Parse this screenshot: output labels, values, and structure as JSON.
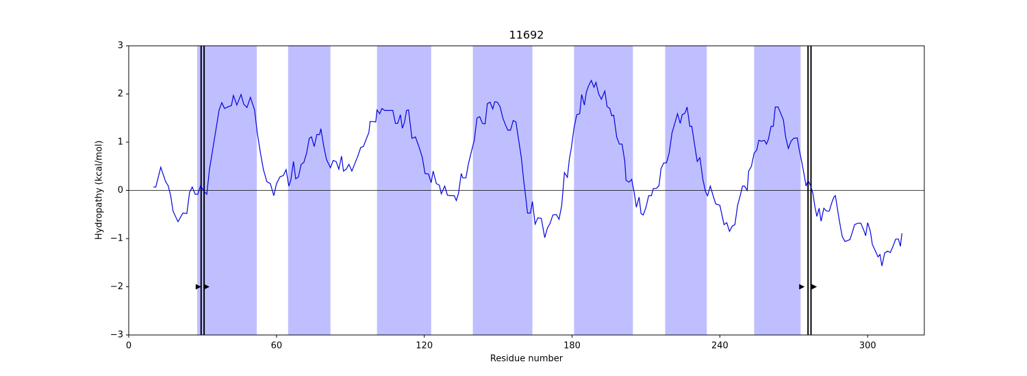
{
  "chart_data": {
    "type": "line",
    "title": "11692",
    "xlabel": "Residue number",
    "ylabel": "Hydropathy (kcal/mol)",
    "xlim": [
      0,
      323
    ],
    "ylim": [
      -3,
      3
    ],
    "xticks": [
      0,
      60,
      120,
      180,
      240,
      300
    ],
    "yticks": [
      {
        "value": -3,
        "label": "−3"
      },
      {
        "value": -2,
        "label": "−2"
      },
      {
        "value": -1,
        "label": "−1"
      },
      0,
      1,
      2,
      3
    ],
    "hline": 0,
    "spans": [
      [
        27.8,
        52
      ],
      [
        64.7,
        81.9
      ],
      [
        100.8,
        122.8
      ],
      [
        139.7,
        163.9
      ],
      [
        180.8,
        204.7
      ],
      [
        217.8,
        234.7
      ],
      [
        253.9,
        272.8
      ]
    ],
    "span_color": "#bfbfff",
    "vlines": [
      29.4,
      30.6,
      275.8,
      277
    ],
    "arrows": {
      "x": [
        28.3,
        31.7,
        273.3,
        278.3
      ],
      "y": [
        -2,
        -2,
        -2,
        -2
      ]
    },
    "color": "#0000dd",
    "x": [
      10,
      11,
      13,
      15,
      16,
      17,
      18,
      20,
      22,
      23.6,
      24.7,
      25.8,
      27,
      28,
      29.2,
      30.3,
      31.7,
      32.8,
      34.2,
      35.6,
      36.7,
      37.8,
      38.9,
      40.6,
      41.7,
      42.5,
      43.9,
      45.6,
      46.7,
      48,
      49.4,
      51.1,
      52.2,
      53.6,
      54.7,
      56.1,
      57.5,
      58.9,
      60,
      61.4,
      62.8,
      63.9,
      65,
      65.8,
      66.9,
      67.8,
      68.9,
      70,
      71.1,
      72.2,
      73.3,
      74.2,
      75.3,
      76.4,
      77.5,
      78,
      79.2,
      80.3,
      81.9,
      83,
      84.2,
      85.3,
      86.4,
      87.2,
      88.3,
      89.4,
      90.6,
      91.9,
      93,
      94.2,
      95.3,
      96.4,
      97.5,
      98,
      99.2,
      100.3,
      100.8,
      101.9,
      102.8,
      103.9,
      105,
      106.1,
      107.2,
      108.3,
      109.2,
      110.3,
      111.1,
      112,
      112.8,
      113.6,
      115,
      116.4,
      118,
      119.2,
      120.3,
      121.7,
      122.8,
      123.6,
      124.9,
      126.1,
      126.9,
      128.3,
      129.4,
      130.8,
      132.2,
      133,
      133.9,
      135,
      135.6,
      136.9,
      138,
      139.2,
      140.3,
      141.4,
      142.5,
      143.6,
      144.7,
      145.6,
      146.7,
      147.8,
      148.6,
      149.7,
      150.8,
      151.9,
      152.8,
      153.9,
      155,
      156.1,
      157.2,
      158.3,
      159.4,
      160.3,
      161.1,
      161.9,
      163.1,
      163.9,
      165,
      166.1,
      167.5,
      168.9,
      170,
      171.1,
      172.2,
      173.6,
      174.7,
      175.8,
      176.9,
      178.1,
      178.9,
      179.7,
      180.8,
      181.9,
      183.1,
      183.9,
      185,
      185.8,
      186.7,
      187.8,
      188.9,
      189.7,
      190.8,
      191.9,
      193.3,
      194.2,
      195.3,
      196.1,
      196.9,
      198.1,
      199.2,
      200.3,
      201.4,
      201.9,
      203.1,
      204.2,
      205.3,
      206.1,
      207.2,
      208,
      208.9,
      210,
      211.1,
      212.2,
      213,
      214.2,
      215.3,
      216.1,
      217.2,
      218.3,
      219.4,
      220.6,
      221.7,
      222.8,
      223.9,
      224.7,
      225.8,
      226.7,
      227.8,
      228.6,
      229.7,
      230.8,
      231.9,
      233.1,
      234.2,
      235,
      236.1,
      237.2,
      238.3,
      240,
      241.7,
      242.8,
      243.9,
      245,
      246.1,
      247.2,
      248.3,
      249.2,
      250,
      251.1,
      251.7,
      252.8,
      253.9,
      255,
      255.8,
      256.9,
      258.1,
      258.9,
      259.7,
      260.8,
      261.7,
      262.5,
      263.6,
      264.7,
      265.8,
      266.7,
      267.8,
      268.9,
      270,
      271.4,
      272.2,
      273.3,
      274.2,
      275,
      275.8,
      276.9,
      277.8,
      278.6,
      279.4,
      280.3,
      281.1,
      282.2,
      283.3,
      284.4,
      285.6,
      286.4,
      286.9,
      288.1,
      288.9,
      289.7,
      290.8,
      291.9,
      292.8,
      293.9,
      294.7,
      296.1,
      297.2,
      298.3,
      299.2,
      300,
      301.1,
      301.9,
      303.1,
      304.2,
      305,
      305.8,
      306.9,
      308.1,
      309.2,
      310.3,
      311.4,
      312.5,
      313.3,
      313.9
    ],
    "values": [
      0.07,
      0.07,
      0.48,
      0.18,
      0.1,
      -0.1,
      -0.43,
      -0.65,
      -0.47,
      -0.48,
      -0.04,
      0.07,
      -0.08,
      -0.08,
      0.1,
      0,
      -0.08,
      0.44,
      0.88,
      1.32,
      1.67,
      1.82,
      1.7,
      1.74,
      1.76,
      1.97,
      1.77,
      1.99,
      1.79,
      1.72,
      1.93,
      1.67,
      1.19,
      0.74,
      0.43,
      0.18,
      0.14,
      -0.11,
      0.14,
      0.28,
      0.31,
      0.43,
      0.09,
      0.21,
      0.6,
      0.24,
      0.28,
      0.54,
      0.58,
      0.77,
      1.08,
      1.11,
      0.91,
      1.16,
      1.16,
      1.28,
      0.91,
      0.64,
      0.47,
      0.62,
      0.6,
      0.44,
      0.71,
      0.4,
      0.44,
      0.54,
      0.4,
      0.57,
      0.71,
      0.89,
      0.91,
      1.06,
      1.2,
      1.43,
      1.43,
      1.42,
      1.67,
      1.59,
      1.7,
      1.66,
      1.66,
      1.66,
      1.66,
      1.39,
      1.39,
      1.57,
      1.29,
      1.42,
      1.66,
      1.67,
      1.08,
      1.11,
      0.88,
      0.68,
      0.35,
      0.34,
      0.16,
      0.4,
      0.14,
      0.11,
      -0.07,
      0.09,
      -0.1,
      -0.11,
      -0.11,
      -0.21,
      -0.06,
      0.35,
      0.26,
      0.26,
      0.57,
      0.82,
      1.04,
      1.5,
      1.53,
      1.39,
      1.38,
      1.8,
      1.83,
      1.69,
      1.84,
      1.83,
      1.73,
      1.5,
      1.38,
      1.25,
      1.25,
      1.45,
      1.42,
      1.05,
      0.68,
      0.23,
      -0.1,
      -0.47,
      -0.47,
      -0.23,
      -0.7,
      -0.57,
      -0.58,
      -0.98,
      -0.78,
      -0.68,
      -0.51,
      -0.5,
      -0.6,
      -0.31,
      0.37,
      0.27,
      0.65,
      0.88,
      1.3,
      1.57,
      1.59,
      1.99,
      1.77,
      2.04,
      2.17,
      2.28,
      2.14,
      2.24,
      2,
      1.89,
      2.06,
      1.74,
      1.7,
      1.55,
      1.56,
      1.11,
      0.96,
      0.96,
      0.6,
      0.21,
      0.17,
      0.23,
      -0.07,
      -0.35,
      -0.14,
      -0.48,
      -0.51,
      -0.35,
      -0.11,
      -0.11,
      0.04,
      0.04,
      0.1,
      0.45,
      0.57,
      0.57,
      0.77,
      1.2,
      1.39,
      1.59,
      1.39,
      1.57,
      1.6,
      1.73,
      1.33,
      1.33,
      0.96,
      0.6,
      0.68,
      0.23,
      -0.03,
      -0.11,
      0.09,
      -0.1,
      -0.28,
      -0.31,
      -0.71,
      -0.67,
      -0.85,
      -0.74,
      -0.71,
      -0.31,
      -0.1,
      0.09,
      0.09,
      0,
      0.4,
      0.5,
      0.77,
      0.84,
      1.04,
      1.02,
      1.04,
      0.96,
      1.06,
      1.33,
      1.33,
      1.73,
      1.73,
      1.6,
      1.46,
      1.11,
      0.87,
      1.02,
      1.08,
      1.09,
      0.85,
      0.58,
      0.33,
      0.09,
      0.21,
      0.09,
      -0.07,
      -0.34,
      -0.54,
      -0.37,
      -0.64,
      -0.37,
      -0.43,
      -0.43,
      -0.23,
      -0.13,
      -0.11,
      -0.5,
      -0.74,
      -0.96,
      -1.06,
      -1.04,
      -1.02,
      -0.85,
      -0.71,
      -0.68,
      -0.68,
      -0.81,
      -0.94,
      -0.67,
      -0.85,
      -1.12,
      -1.25,
      -1.38,
      -1.33,
      -1.57,
      -1.3,
      -1.26,
      -1.29,
      -1.16,
      -1.01,
      -1.01,
      -1.16,
      -0.89
    ]
  }
}
